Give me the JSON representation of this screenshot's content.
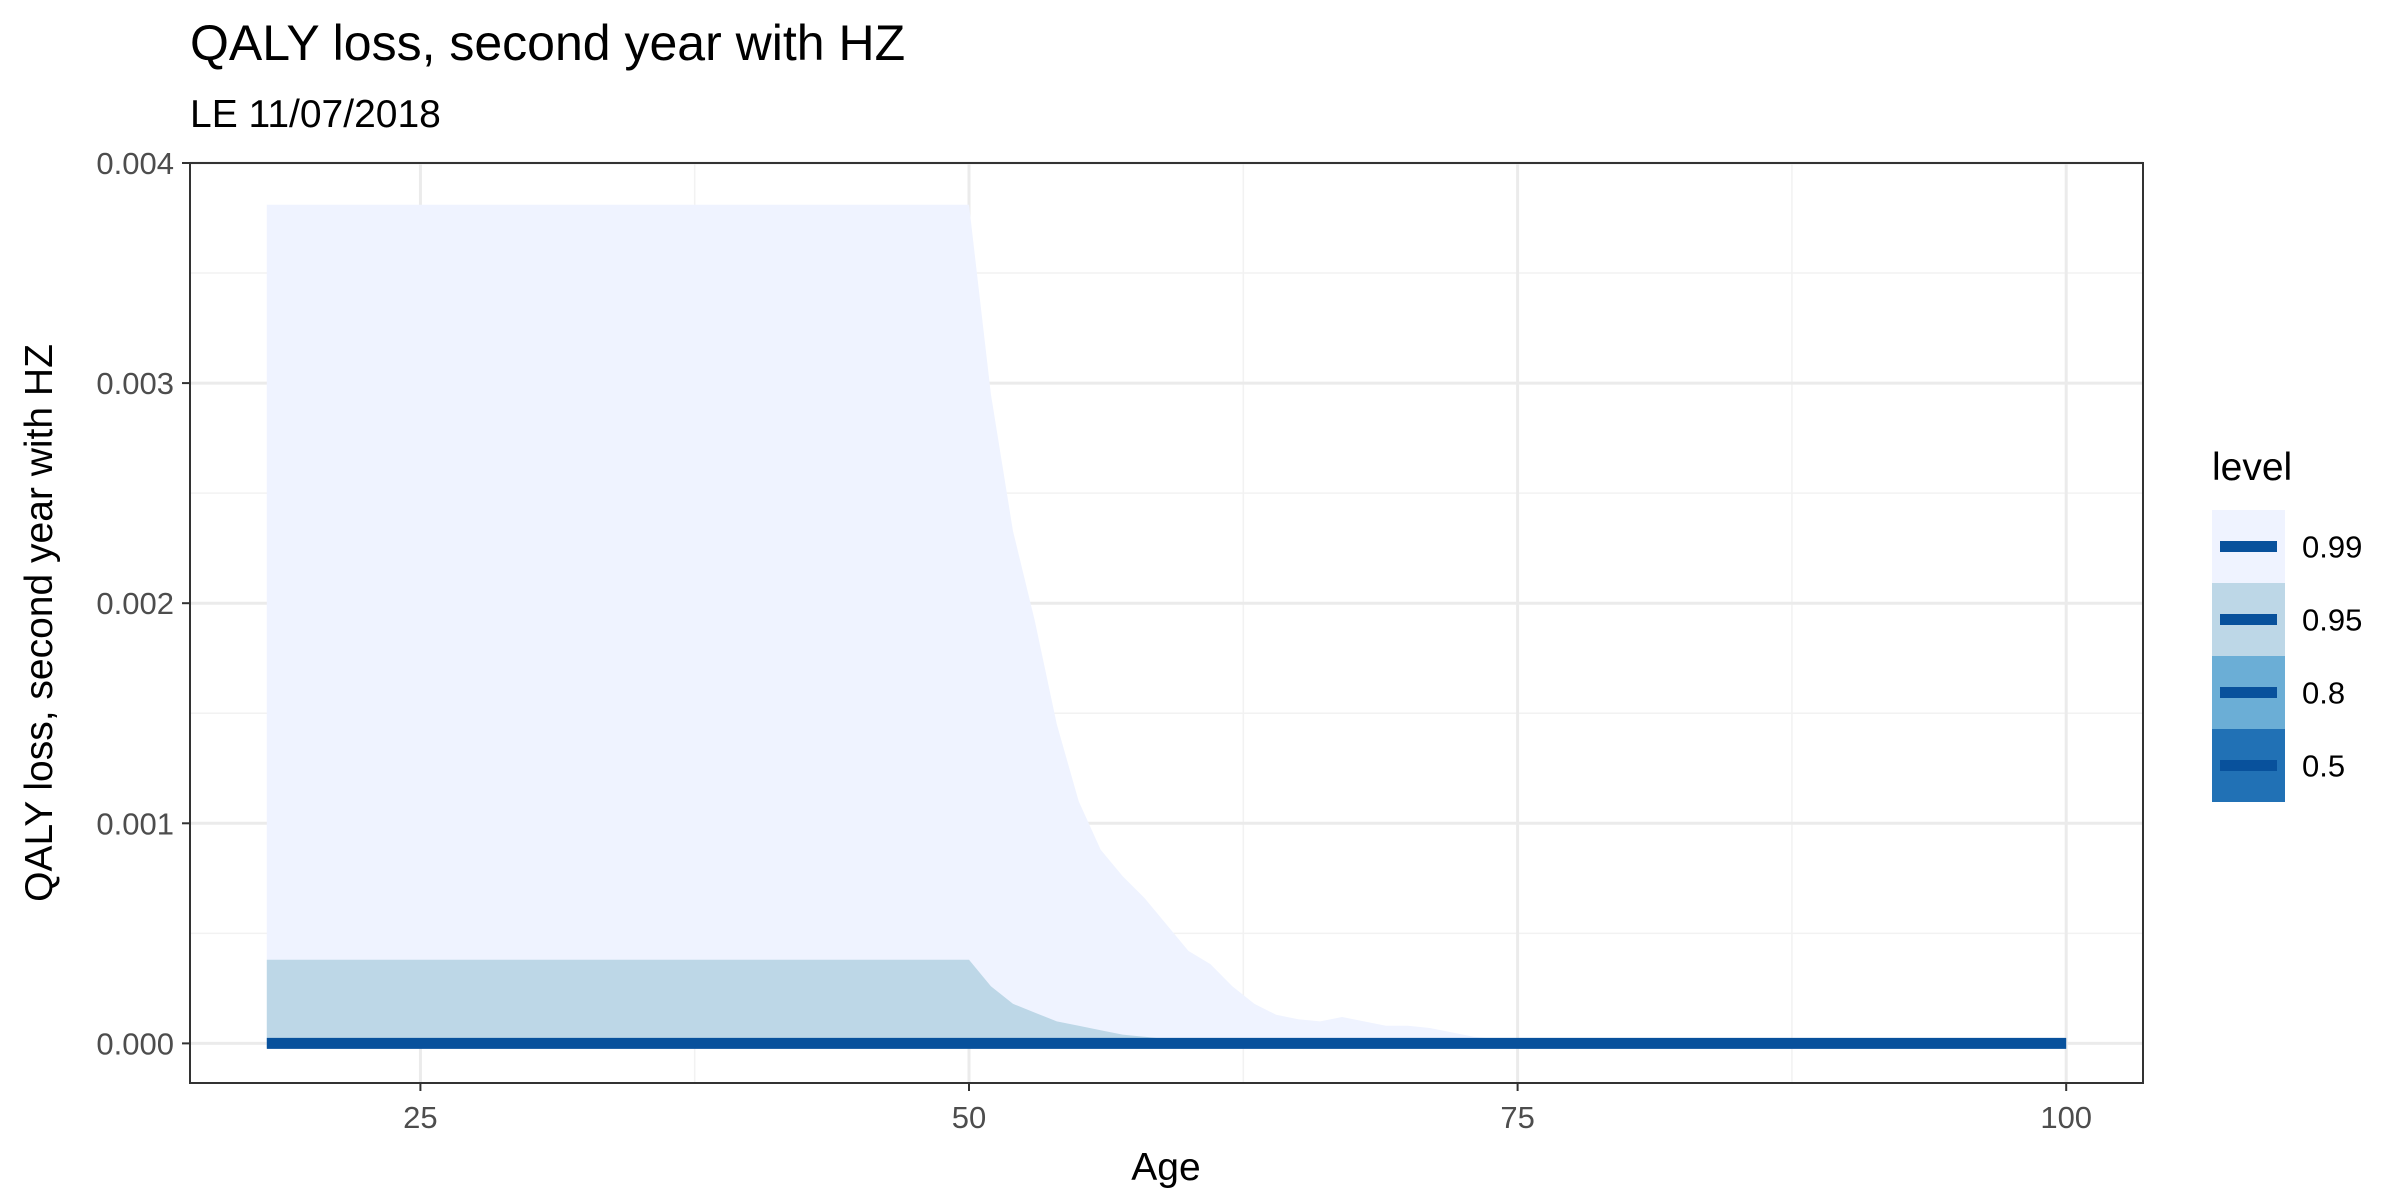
{
  "chart_data": {
    "type": "area",
    "title": "QALY loss, second year with HZ",
    "subtitle": "LE 11/07/2018",
    "xlabel": "Age",
    "ylabel": "QALY loss, second year with HZ",
    "xlim": [
      14.5,
      103.5
    ],
    "ylim": [
      -0.00018,
      0.004
    ],
    "x_ticks": [
      25,
      50,
      75,
      100
    ],
    "x_tick_labels": [
      "25",
      "50",
      "75",
      "100"
    ],
    "y_ticks": [
      0,
      0.001,
      0.002,
      0.003,
      0.004
    ],
    "y_tick_labels": [
      "0.000",
      "0.001",
      "0.002",
      "0.003",
      "0.004"
    ],
    "grid": true,
    "legend": {
      "title": "level",
      "position": "right",
      "entries": [
        {
          "label": "0.99",
          "fill": "#eff3ff"
        },
        {
          "label": "0.95",
          "fill": "#bdd7e7"
        },
        {
          "label": "0.8",
          "fill": "#6baed6"
        },
        {
          "label": "0.5",
          "fill": "#2171b5"
        }
      ],
      "line_color": "#08519c"
    },
    "series": [
      {
        "name": "0.99",
        "fill": "#eff3ff",
        "x": [
          18,
          50,
          51,
          52,
          53,
          54,
          55,
          56,
          57,
          58,
          59,
          60,
          61,
          62,
          63,
          64,
          65,
          66,
          67,
          68,
          69,
          70,
          71,
          72,
          73,
          74,
          75,
          100
        ],
        "lower": [
          -2e-05,
          -2e-05,
          -2e-05,
          -2e-05,
          -2e-05,
          -2e-05,
          -2e-05,
          -2e-05,
          -2e-05,
          -2e-05,
          -2e-05,
          -2e-05,
          -2e-05,
          -2e-05,
          -2e-05,
          -2e-05,
          -2e-05,
          -2e-05,
          -2e-05,
          -2e-05,
          -2e-05,
          -2e-05,
          -2e-05,
          -2e-05,
          -2e-05,
          -2e-05,
          -2e-05,
          -2e-05
        ],
        "upper": [
          0.00381,
          0.00381,
          0.00295,
          0.00233,
          0.00192,
          0.00145,
          0.0011,
          0.00088,
          0.00076,
          0.00066,
          0.00054,
          0.00042,
          0.00036,
          0.00026,
          0.00018,
          0.00013,
          0.00011,
          0.0001,
          0.00012,
          0.0001,
          8e-05,
          8e-05,
          7e-05,
          5e-05,
          3e-05,
          2e-05,
          2e-05,
          2e-05
        ]
      },
      {
        "name": "0.95",
        "fill": "#bdd7e7",
        "x": [
          18,
          50,
          51,
          52,
          53,
          54,
          55,
          56,
          57,
          58,
          59,
          60,
          100
        ],
        "lower": [
          -2e-05,
          -2e-05,
          -2e-05,
          -2e-05,
          -2e-05,
          -2e-05,
          -2e-05,
          -2e-05,
          -2e-05,
          -2e-05,
          -2e-05,
          -2e-05,
          -2e-05
        ],
        "upper": [
          0.00038,
          0.00038,
          0.00026,
          0.00018,
          0.00014,
          0.0001,
          8e-05,
          6e-05,
          4e-05,
          3e-05,
          2e-05,
          2e-05,
          2e-05
        ]
      }
    ],
    "median_line": {
      "x": [
        18,
        100
      ],
      "y": [
        0,
        0
      ],
      "color": "#08519c"
    }
  }
}
